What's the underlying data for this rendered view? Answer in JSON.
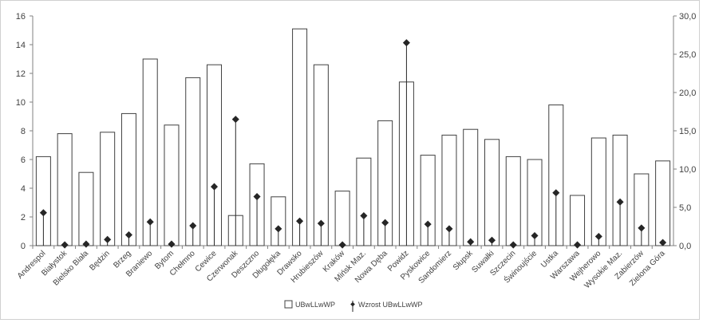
{
  "chart_data": {
    "type": "bar",
    "categories": [
      "Andrespol",
      "Białystok",
      "Bielsko Biała",
      "Będzin",
      "Brzeg",
      "Braniewo",
      "Bytom",
      "Chełmno",
      "Cewice",
      "Czerwonak",
      "Deszczno",
      "Długołęka",
      "Drawsko",
      "Hrubieszów",
      "Kraków",
      "Mińsk Maz.",
      "Nowa Dęba",
      "Powidz",
      "Pyskowice",
      "Sandomierz",
      "Słupsk",
      "Suwałki",
      "Szczecin",
      "Świnoujście",
      "Ustka",
      "Warszawa",
      "Wejherowo",
      "Wysokie Maz.",
      "Zabierzów",
      "Zielona Góra"
    ],
    "series": [
      {
        "name": "UBwLLwWP",
        "type": "bar",
        "axis": "left",
        "values": [
          6.2,
          7.8,
          5.1,
          7.9,
          9.2,
          13.0,
          8.4,
          11.7,
          12.6,
          2.1,
          5.7,
          3.4,
          15.1,
          12.6,
          3.8,
          6.1,
          8.7,
          11.4,
          6.3,
          7.7,
          8.1,
          7.4,
          6.2,
          6.0,
          9.8,
          3.5,
          7.5,
          7.7,
          5.0,
          5.9
        ]
      },
      {
        "name": "Wzrost UBwLLwWP",
        "type": "scatter",
        "axis": "right",
        "values": [
          4.3,
          0.1,
          0.2,
          0.8,
          1.4,
          3.1,
          0.2,
          2.6,
          7.7,
          16.5,
          6.4,
          2.2,
          3.2,
          2.9,
          0.1,
          3.9,
          3.0,
          26.5,
          2.8,
          2.2,
          0.5,
          0.7,
          0.1,
          1.3,
          6.9,
          0.1,
          1.2,
          5.7,
          2.3,
          0.4
        ]
      }
    ],
    "y_left": {
      "ylim": [
        0,
        16
      ],
      "ticks": [
        "0",
        "2",
        "4",
        "6",
        "8",
        "10",
        "12",
        "14",
        "16"
      ]
    },
    "y_right": {
      "ylim": [
        0,
        30
      ],
      "ticks": [
        "0,0",
        "5,0",
        "10,0",
        "15,0",
        "20,0",
        "25,0",
        "30,0"
      ]
    },
    "legend": {
      "placement": "bottom-center",
      "items": [
        "UBwLLwWP",
        "Wzrost UBwLLwWP"
      ]
    },
    "grid": false,
    "colors": {
      "bar_fill": "#ffffff",
      "bar_stroke": "#404040",
      "marker": "#262626",
      "axis": "#808080"
    }
  }
}
